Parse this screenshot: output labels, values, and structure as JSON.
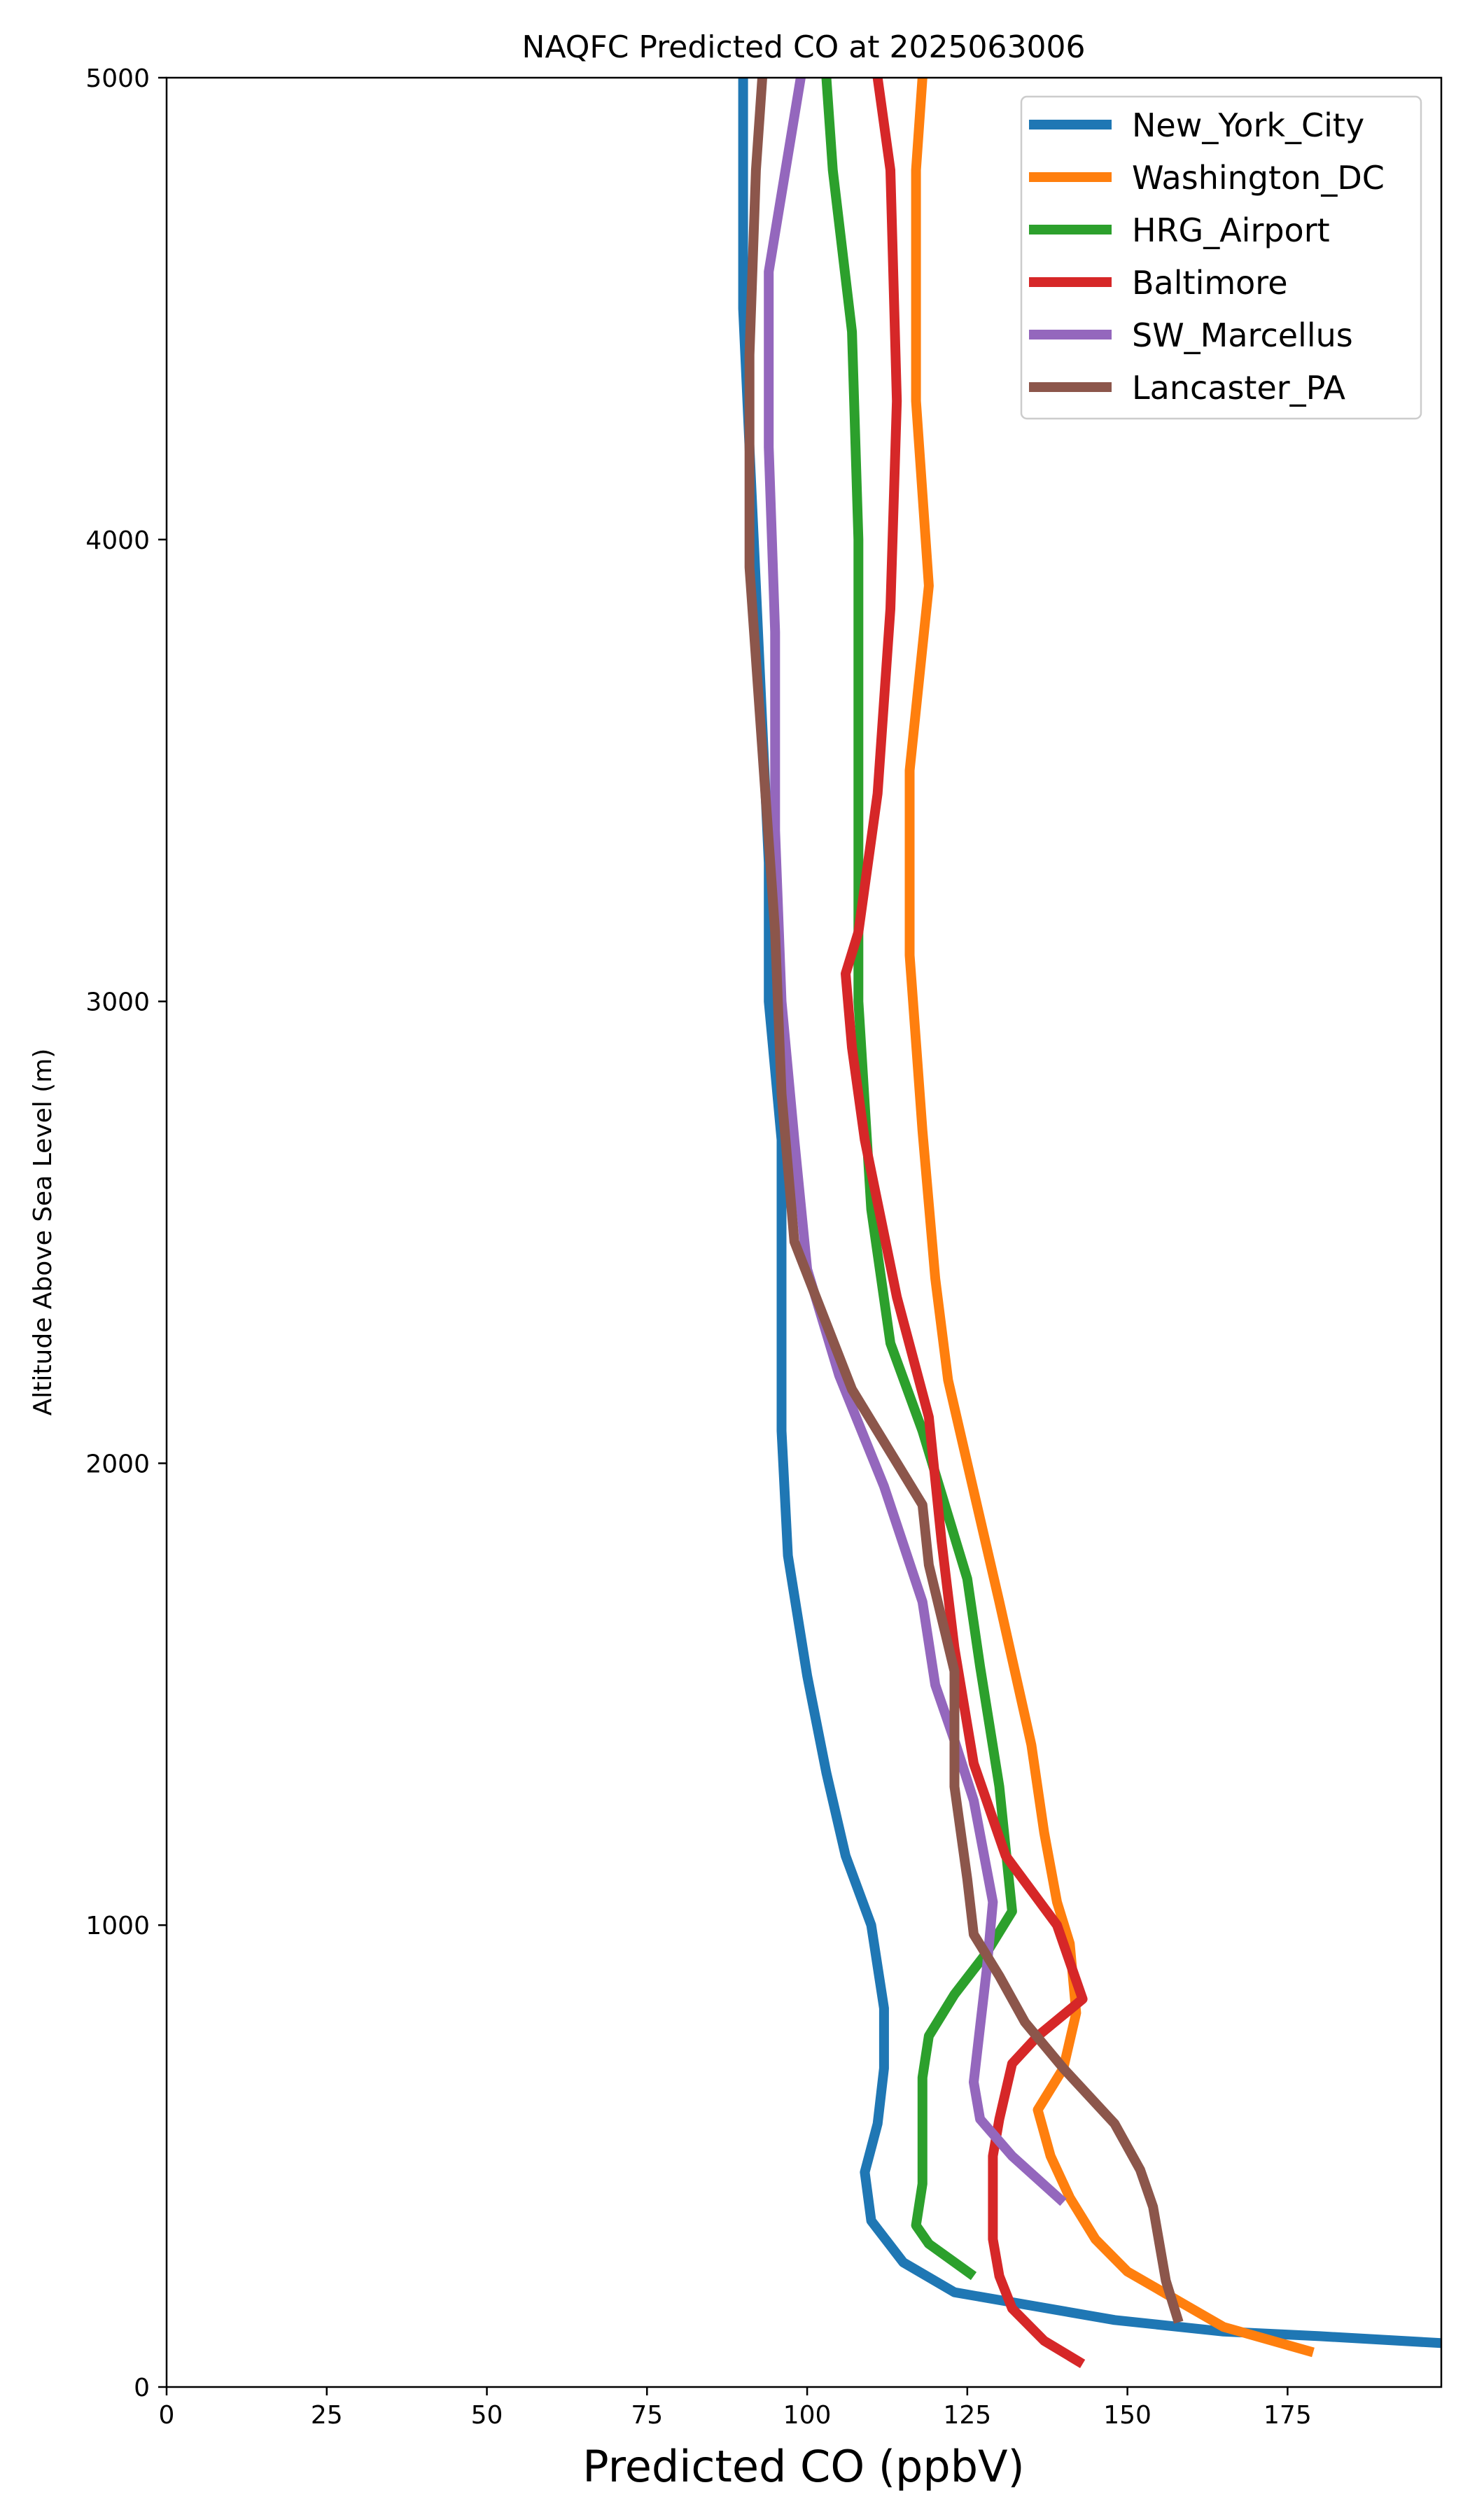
{
  "chart_data": {
    "type": "line",
    "title": "NAQFC Predicted CO at 2025063006",
    "xlabel": "Predicted CO (ppbV)",
    "ylabel": "Altitude Above Sea Level (m)",
    "xlim": [
      0,
      199
    ],
    "ylim": [
      0,
      5000
    ],
    "x_ticks": [
      0,
      25,
      50,
      75,
      100,
      125,
      150,
      175
    ],
    "y_ticks": [
      0,
      1000,
      2000,
      3000,
      4000,
      5000
    ],
    "grid": false,
    "legend_position": "top-right",
    "series": [
      {
        "name": "New_York_City",
        "color": "#1f77b4",
        "points": [
          [
            199,
            95
          ],
          [
            180,
            110
          ],
          [
            165,
            120
          ],
          [
            148,
            145
          ],
          [
            123,
            205
          ],
          [
            115,
            270
          ],
          [
            110,
            360
          ],
          [
            109,
            465
          ],
          [
            111,
            570
          ],
          [
            112,
            690
          ],
          [
            112,
            820
          ],
          [
            110,
            1000
          ],
          [
            106,
            1150
          ],
          [
            103,
            1330
          ],
          [
            100,
            1540
          ],
          [
            97,
            1800
          ],
          [
            96,
            2070
          ],
          [
            96,
            2360
          ],
          [
            96,
            2700
          ],
          [
            94,
            3000
          ],
          [
            94,
            3300
          ],
          [
            93,
            3600
          ],
          [
            92,
            3900
          ],
          [
            91,
            4200
          ],
          [
            90,
            4500
          ],
          [
            90,
            4800
          ],
          [
            90,
            5000
          ]
        ]
      },
      {
        "name": "Washington_DC",
        "color": "#ff7f0e",
        "points": [
          [
            179,
            75
          ],
          [
            165,
            130
          ],
          [
            150,
            250
          ],
          [
            145,
            320
          ],
          [
            141,
            410
          ],
          [
            138,
            500
          ],
          [
            136,
            600
          ],
          [
            140,
            690
          ],
          [
            142,
            810
          ],
          [
            141,
            960
          ],
          [
            139,
            1050
          ],
          [
            137,
            1200
          ],
          [
            135,
            1390
          ],
          [
            130,
            1700
          ],
          [
            125,
            2000
          ],
          [
            122,
            2180
          ],
          [
            120,
            2400
          ],
          [
            118,
            2720
          ],
          [
            116,
            3100
          ],
          [
            116,
            3500
          ],
          [
            119,
            3900
          ],
          [
            117,
            4300
          ],
          [
            117,
            4700
          ],
          [
            117,
            4800
          ],
          [
            118,
            5000
          ]
        ]
      },
      {
        "name": "HRG_Airport",
        "color": "#2ca02c",
        "points": [
          [
            126,
            240
          ],
          [
            119,
            310
          ],
          [
            117,
            350
          ],
          [
            118,
            440
          ],
          [
            118,
            560
          ],
          [
            118,
            670
          ],
          [
            119,
            760
          ],
          [
            123,
            850
          ],
          [
            128,
            940
          ],
          [
            132,
            1030
          ],
          [
            130,
            1300
          ],
          [
            127,
            1560
          ],
          [
            125,
            1750
          ],
          [
            118,
            2070
          ],
          [
            113,
            2260
          ],
          [
            110,
            2550
          ],
          [
            108,
            3000
          ],
          [
            108,
            3500
          ],
          [
            108,
            4000
          ],
          [
            107,
            4450
          ],
          [
            104,
            4800
          ],
          [
            103,
            5000
          ]
        ]
      },
      {
        "name": "Baltimore",
        "color": "#d62728",
        "points": [
          [
            143,
            50
          ],
          [
            137,
            100
          ],
          [
            132,
            170
          ],
          [
            130,
            240
          ],
          [
            129,
            320
          ],
          [
            129,
            420
          ],
          [
            129,
            500
          ],
          [
            130,
            580
          ],
          [
            132,
            700
          ],
          [
            136,
            760
          ],
          [
            143,
            840
          ],
          [
            139,
            1000
          ],
          [
            131,
            1150
          ],
          [
            126,
            1350
          ],
          [
            123,
            1600
          ],
          [
            121,
            1830
          ],
          [
            119,
            2100
          ],
          [
            114,
            2360
          ],
          [
            109,
            2700
          ],
          [
            107,
            2900
          ],
          [
            106,
            3060
          ],
          [
            108,
            3150
          ],
          [
            111,
            3450
          ],
          [
            113,
            3850
          ],
          [
            114,
            4300
          ],
          [
            113,
            4800
          ],
          [
            111,
            5000
          ]
        ]
      },
      {
        "name": "SW_Marcellus",
        "color": "#9467bd",
        "points": [
          [
            140,
            400
          ],
          [
            132,
            500
          ],
          [
            127,
            580
          ],
          [
            126,
            660
          ],
          [
            127,
            780
          ],
          [
            128,
            900
          ],
          [
            129,
            1050
          ],
          [
            126,
            1270
          ],
          [
            123,
            1400
          ],
          [
            120,
            1520
          ],
          [
            118,
            1700
          ],
          [
            112,
            1950
          ],
          [
            105,
            2190
          ],
          [
            100,
            2420
          ],
          [
            98,
            2700
          ],
          [
            96,
            3000
          ],
          [
            95,
            3370
          ],
          [
            95,
            3800
          ],
          [
            94,
            4200
          ],
          [
            94,
            4580
          ],
          [
            99,
            5000
          ]
        ]
      },
      {
        "name": "Lancaster_PA",
        "color": "#8c564b",
        "points": [
          [
            158,
            140
          ],
          [
            156,
            230
          ],
          [
            154,
            390
          ],
          [
            152,
            470
          ],
          [
            148,
            570
          ],
          [
            140,
            690
          ],
          [
            134,
            790
          ],
          [
            130,
            890
          ],
          [
            126,
            980
          ],
          [
            125,
            1100
          ],
          [
            123,
            1300
          ],
          [
            123,
            1550
          ],
          [
            119,
            1780
          ],
          [
            118,
            1910
          ],
          [
            107,
            2160
          ],
          [
            98,
            2480
          ],
          [
            96,
            2800
          ],
          [
            95,
            3150
          ],
          [
            91,
            3940
          ],
          [
            91,
            4400
          ],
          [
            92,
            4800
          ],
          [
            93,
            5000
          ]
        ]
      }
    ]
  }
}
